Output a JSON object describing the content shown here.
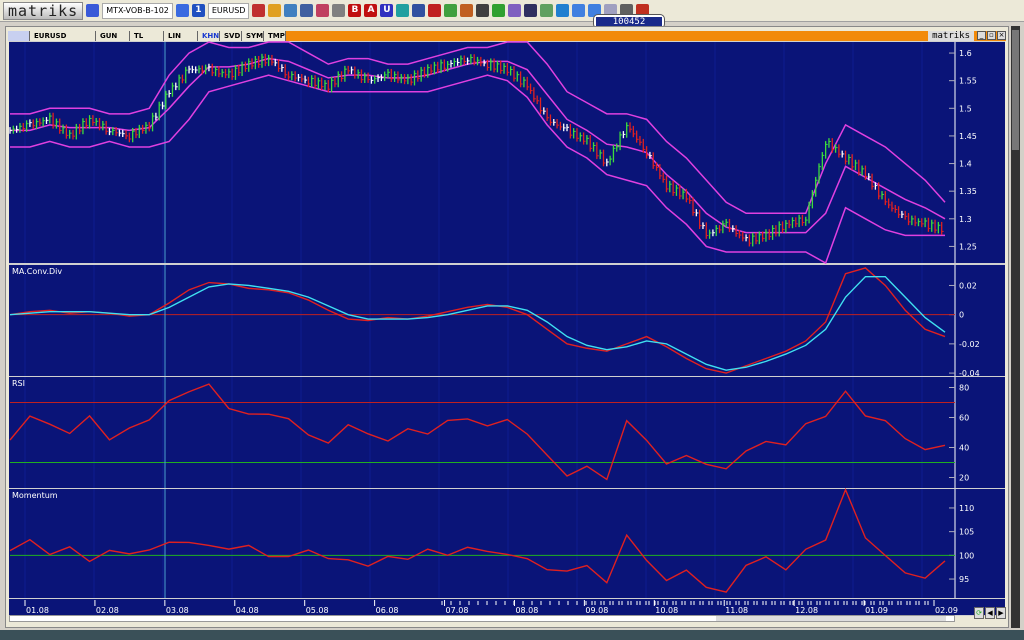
{
  "toolbar": {
    "logo": "matriks",
    "template": "MTX-VOB-B-102",
    "symbol": "EURUSD",
    "icons": [
      "save-icon",
      "blue-square-icon",
      "info-icon",
      "chart-line-icon",
      "pie-icon",
      "scale-icon",
      "clock-icon",
      "book-icon",
      "draw-icon",
      "bold-b-icon",
      "text-a-icon",
      "underline-u-icon",
      "crosshair-icon",
      "grid-icon",
      "eye-icon",
      "money-icon",
      "gift-icon",
      "traffic-light-icon",
      "table-icon",
      "split-icon",
      "windows-icon",
      "card-icon",
      "globe-icon",
      "window-min-icon",
      "window-max-icon",
      "mail-icon",
      "print-icon",
      "alarm-icon"
    ],
    "icon_letters": {
      "bold-b-icon": "B",
      "text-a-icon": "A",
      "underline-u-icon": "U",
      "info-icon": "1"
    }
  },
  "price_badge": "100452",
  "window": {
    "brand": "matriks",
    "tabs": [
      {
        "label": "EURUSD"
      },
      {
        "label": "GUN"
      },
      {
        "label": "TL"
      },
      {
        "label": "LIN"
      },
      {
        "label": "KHN",
        "active": true
      },
      {
        "label": "SVD"
      },
      {
        "label": "SYM"
      },
      {
        "label": "TMP"
      }
    ]
  },
  "colors": {
    "background": "#0a1478",
    "up": "#3cdc3c",
    "down": "#e02020",
    "neutral": "#ffffff",
    "bands": "#e040e0",
    "macd": "#e02020",
    "signal": "#40e0f0",
    "grid": "#0e1c90"
  },
  "chart_data": [
    {
      "type": "bar",
      "title": "",
      "symbol": "EURUSD",
      "ylim": [
        1.22,
        1.62
      ],
      "yticks": [
        1.25,
        1.3,
        1.35,
        1.4,
        1.45,
        1.5,
        1.55,
        1.6
      ],
      "close": [
        1.46,
        1.47,
        1.48,
        1.45,
        1.48,
        1.46,
        1.45,
        1.47,
        1.53,
        1.57,
        1.57,
        1.56,
        1.58,
        1.59,
        1.56,
        1.55,
        1.54,
        1.57,
        1.55,
        1.56,
        1.55,
        1.57,
        1.58,
        1.59,
        1.58,
        1.57,
        1.54,
        1.48,
        1.46,
        1.44,
        1.4,
        1.47,
        1.42,
        1.36,
        1.34,
        1.27,
        1.29,
        1.26,
        1.27,
        1.29,
        1.3,
        1.44,
        1.41,
        1.38,
        1.33,
        1.3,
        1.29,
        1.28
      ],
      "upper_band": [
        1.49,
        1.49,
        1.5,
        1.5,
        1.5,
        1.49,
        1.49,
        1.5,
        1.56,
        1.6,
        1.62,
        1.61,
        1.61,
        1.62,
        1.62,
        1.6,
        1.58,
        1.59,
        1.59,
        1.58,
        1.58,
        1.59,
        1.6,
        1.61,
        1.61,
        1.62,
        1.62,
        1.58,
        1.53,
        1.51,
        1.49,
        1.49,
        1.48,
        1.44,
        1.41,
        1.37,
        1.33,
        1.31,
        1.31,
        1.31,
        1.31,
        1.4,
        1.47,
        1.45,
        1.43,
        1.4,
        1.37,
        1.33
      ],
      "lower_band": [
        1.43,
        1.43,
        1.44,
        1.43,
        1.43,
        1.44,
        1.43,
        1.43,
        1.44,
        1.48,
        1.53,
        1.54,
        1.55,
        1.56,
        1.55,
        1.54,
        1.53,
        1.53,
        1.53,
        1.53,
        1.53,
        1.53,
        1.54,
        1.55,
        1.56,
        1.55,
        1.52,
        1.47,
        1.43,
        1.41,
        1.38,
        1.37,
        1.36,
        1.32,
        1.29,
        1.25,
        1.24,
        1.24,
        1.24,
        1.24,
        1.24,
        1.22,
        1.32,
        1.3,
        1.28,
        1.27,
        1.27,
        1.27
      ]
    },
    {
      "type": "line",
      "title": "MA.Conv.Div",
      "ylim": [
        -0.042,
        0.034
      ],
      "yticks": [
        -0.04,
        -0.02,
        0,
        0.02
      ],
      "ref_lines": [
        {
          "value": 0,
          "color": "#c02020"
        }
      ],
      "series": [
        {
          "values": [
            0.0,
            0.002,
            0.003,
            0.001,
            0.002,
            0.001,
            -0.001,
            0.0,
            0.008,
            0.017,
            0.022,
            0.021,
            0.018,
            0.017,
            0.015,
            0.01,
            0.003,
            -0.003,
            -0.004,
            -0.002,
            -0.003,
            -0.001,
            0.002,
            0.005,
            0.007,
            0.005,
            0.0,
            -0.01,
            -0.02,
            -0.023,
            -0.025,
            -0.02,
            -0.015,
            -0.022,
            -0.03,
            -0.037,
            -0.04,
            -0.035,
            -0.03,
            -0.025,
            -0.018,
            -0.005,
            0.028,
            0.032,
            0.02,
            0.003,
            -0.01,
            -0.015
          ],
          "color": "#e02020"
        },
        {
          "values": [
            0.0,
            0.001,
            0.002,
            0.002,
            0.002,
            0.001,
            0.0,
            0.0,
            0.005,
            0.012,
            0.019,
            0.021,
            0.02,
            0.018,
            0.016,
            0.012,
            0.006,
            0.0,
            -0.003,
            -0.003,
            -0.003,
            -0.002,
            0.0,
            0.003,
            0.006,
            0.006,
            0.003,
            -0.005,
            -0.015,
            -0.021,
            -0.024,
            -0.022,
            -0.018,
            -0.02,
            -0.027,
            -0.034,
            -0.038,
            -0.036,
            -0.032,
            -0.027,
            -0.021,
            -0.01,
            0.012,
            0.026,
            0.026,
            0.012,
            -0.002,
            -0.012
          ],
          "color": "#40e0f0"
        }
      ]
    },
    {
      "type": "line",
      "title": "RSI",
      "ylim": [
        13,
        87
      ],
      "yticks": [
        20,
        40,
        60,
        80
      ],
      "ref_lines": [
        {
          "value": 70,
          "color": "#c02020"
        },
        {
          "value": 30,
          "color": "#20b020"
        }
      ],
      "series": [
        {
          "values": [
            45,
            60,
            55,
            50,
            62,
            45,
            52,
            58,
            72,
            78,
            82,
            65,
            62,
            63,
            60,
            48,
            42,
            55,
            50,
            45,
            52,
            48,
            58,
            60,
            55,
            58,
            48,
            35,
            22,
            28,
            18,
            57,
            45,
            30,
            35,
            28,
            25,
            38,
            45,
            42,
            55,
            60,
            78,
            62,
            58,
            45,
            38,
            42
          ],
          "color": "#e02020"
        }
      ]
    },
    {
      "type": "line",
      "title": "Momentum",
      "ylim": [
        91,
        114
      ],
      "yticks": [
        95,
        100,
        105,
        110
      ],
      "ref_lines": [
        {
          "value": 100,
          "color": "#20b020"
        }
      ],
      "series": [
        {
          "values": [
            101,
            103,
            100,
            102,
            99,
            101,
            100,
            101,
            103,
            103,
            102,
            101,
            102,
            100,
            100,
            101,
            99,
            99,
            98,
            100,
            99,
            101,
            100,
            102,
            101,
            100,
            99,
            97,
            97,
            98,
            94,
            104,
            99,
            95,
            97,
            93,
            92,
            98,
            100,
            97,
            101,
            103,
            114,
            104,
            100,
            96,
            95,
            99
          ],
          "color": "#e02020"
        }
      ]
    }
  ],
  "x_axis": {
    "ticks": [
      "01.08",
      "02.08",
      "03.08",
      "04.08",
      "05.08",
      "06.08",
      "07.08",
      "08.08",
      "09.08",
      "10.08",
      "11.08",
      "12.08",
      "01.09",
      "02.09"
    ]
  }
}
